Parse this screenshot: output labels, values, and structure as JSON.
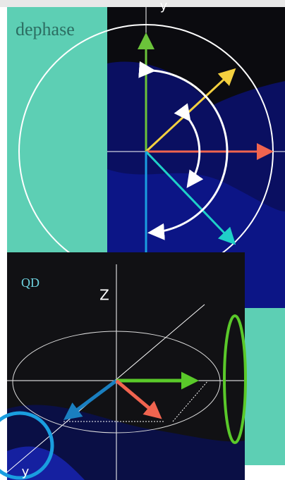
{
  "panels": {
    "dephase": {
      "label": "dephase",
      "axis_label": "y"
    },
    "qd": {
      "label": "QD",
      "z_label": "Z",
      "y_label": "y"
    }
  }
}
